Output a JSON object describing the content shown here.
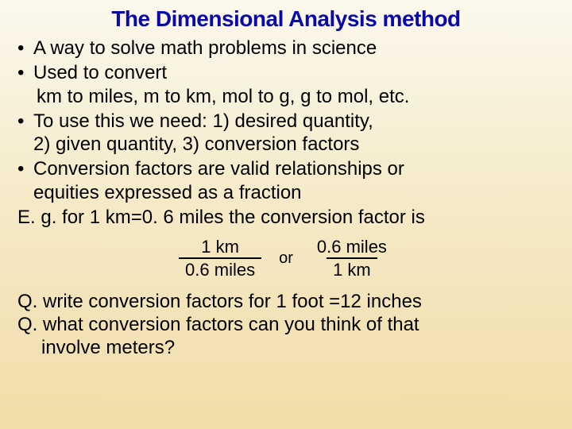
{
  "title": "The Dimensional Analysis method",
  "bullets": {
    "b1": "A way to solve math problems in science",
    "b2_l1": "Used to convert",
    "b2_l2": "km to miles, m to km, mol to g, g to mol, etc.",
    "b3_l1": "To use this we need: 1) desired quantity,",
    "b3_l2": "2) given quantity, 3) conversion factors",
    "b4_l1": "Conversion factors are valid relationships or",
    "b4_l2": "equities expressed as a fraction"
  },
  "eg": "E. g. for 1 km=0. 6 miles the conversion factor is",
  "formula": {
    "left_num": "1 km",
    "left_den": "0.6 miles",
    "or": "or",
    "right_num": "0.6 miles",
    "right_den": "1 km"
  },
  "q1": "Q. write conversion factors for 1 foot =12 inches",
  "q2_l1": "Q. what conversion factors can you think of that",
  "q2_l2": "involve meters?",
  "colors": {
    "title_color": "#0a0aa8",
    "text_color": "#000000",
    "bg_top": "#fbf8ed",
    "bg_mid": "#f5e9c6",
    "bg_bottom": "#f0dda8"
  },
  "typography": {
    "title_fontsize": 28,
    "body_fontsize": 24,
    "formula_fontsize": 22
  }
}
